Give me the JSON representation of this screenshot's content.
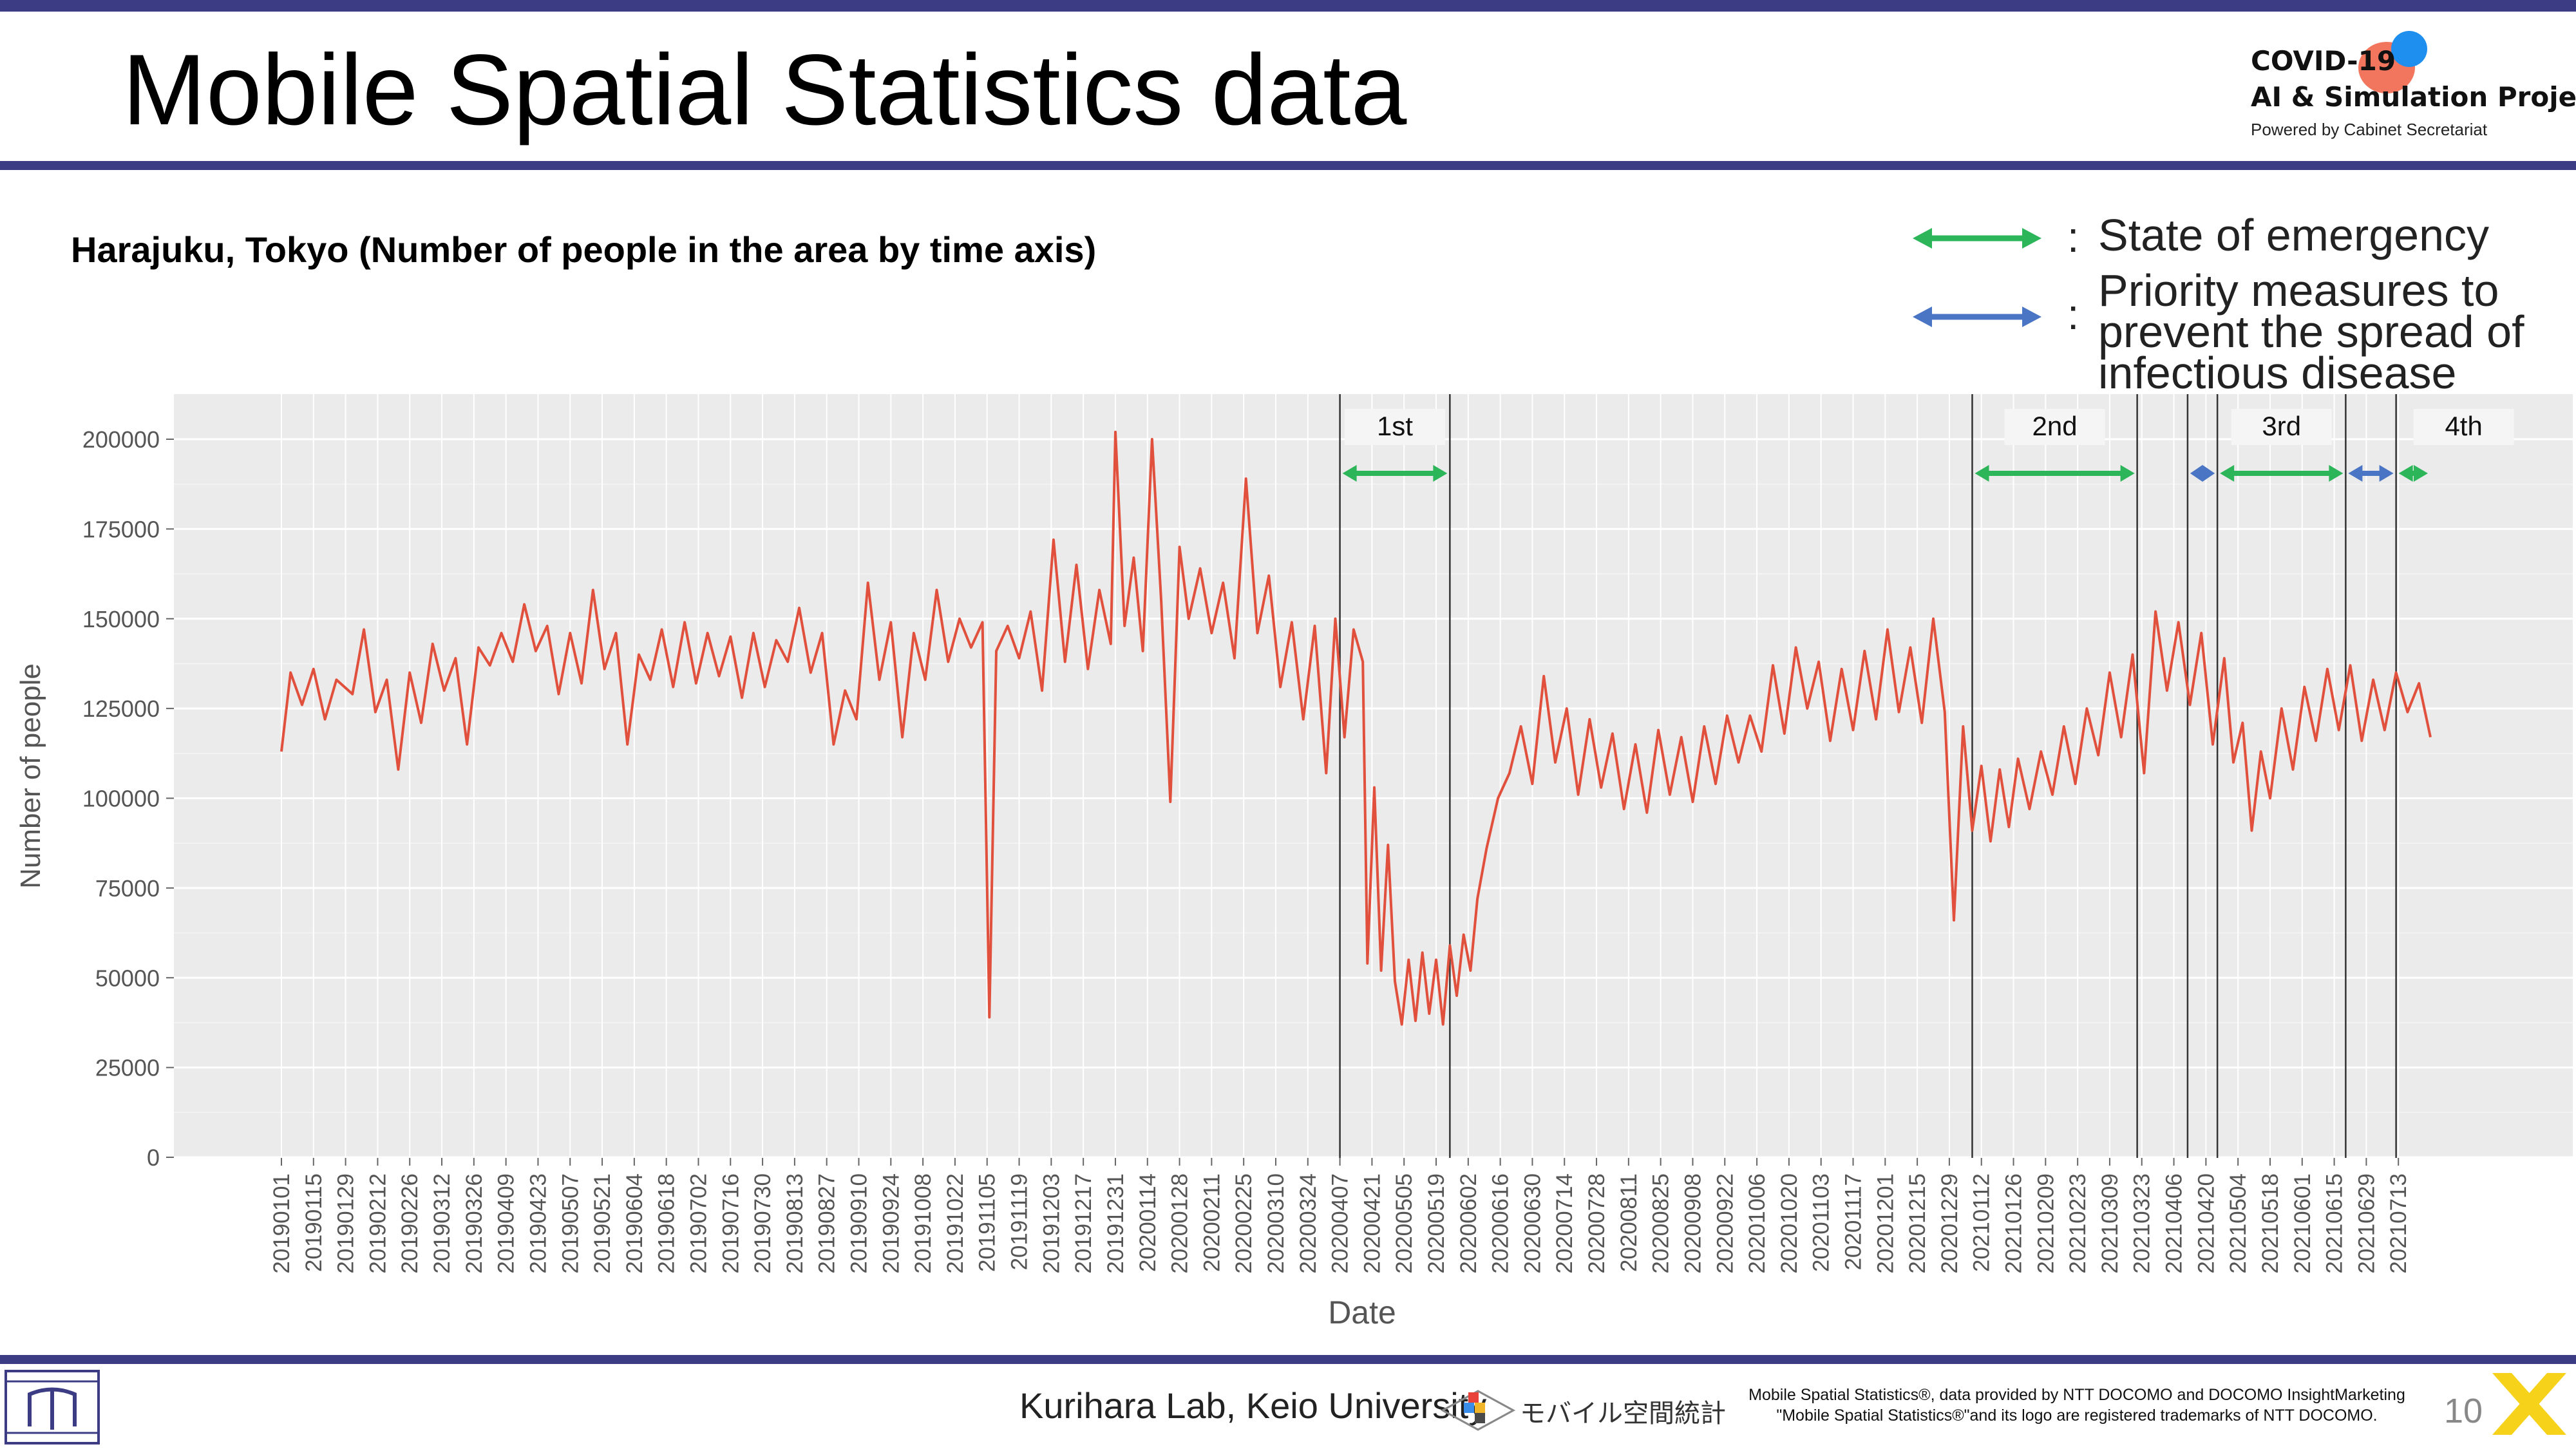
{
  "header": {
    "title": "Mobile Spatial Statistics data",
    "brand_line1": "COVID-19",
    "brand_line2": "AI & Simulation Project",
    "brand_line3": "Powered by Cabinet Secretariat"
  },
  "subtitle": "Harajuku, Tokyo (Number of people in the area by time axis)",
  "legend": {
    "emergency_colon": ":",
    "emergency_label": "State of emergency",
    "priority_colon": ":",
    "priority_label_1": "Priority measures to",
    "priority_label_2": "prevent the spread of",
    "priority_label_3": "infectious disease",
    "emergency_color": "#2db55a",
    "priority_color": "#4a74c4"
  },
  "chart_data": {
    "type": "line",
    "title": "",
    "xlabel": "Date",
    "ylabel": "Number of people",
    "ylim": [
      0,
      210000
    ],
    "y_ticks": [
      0,
      25000,
      50000,
      75000,
      100000,
      125000,
      150000,
      175000,
      200000
    ],
    "y_tick_labels": [
      "0",
      "25000",
      "50000",
      "75000",
      "100000",
      "125000",
      "150000",
      "175000",
      "200000"
    ],
    "x_range": [
      "2019-01-01",
      "2021-07-27"
    ],
    "x_ticks": [
      "20190101",
      "20190115",
      "20190129",
      "20190212",
      "20190226",
      "20190312",
      "20190326",
      "20190409",
      "20190423",
      "20190507",
      "20190521",
      "20190604",
      "20190618",
      "20190702",
      "20190716",
      "20190730",
      "20190813",
      "20190827",
      "20190910",
      "20190924",
      "20191008",
      "20191022",
      "20191105",
      "20191119",
      "20191203",
      "20191217",
      "20191231",
      "20200114",
      "20200128",
      "20200211",
      "20200225",
      "20200310",
      "20200324",
      "20200407",
      "20200421",
      "20200505",
      "20200519",
      "20200602",
      "20200616",
      "20200630",
      "20200714",
      "20200728",
      "20200811",
      "20200825",
      "20200908",
      "20200922",
      "20201006",
      "20201020",
      "20201103",
      "20201117",
      "20201201",
      "20201215",
      "20201229",
      "20210112",
      "20210126",
      "20210209",
      "20210223",
      "20210309",
      "20210323",
      "20210406",
      "20210420",
      "20210504",
      "20210518",
      "20210601",
      "20210615",
      "20210629",
      "20210713"
    ],
    "grid": true,
    "line_color": "#e0503c",
    "series": [
      {
        "name": "",
        "points": [
          [
            "2019-01-01",
            113000
          ],
          [
            "2019-01-05",
            135000
          ],
          [
            "2019-01-10",
            126000
          ],
          [
            "2019-01-15",
            136000
          ],
          [
            "2019-01-20",
            122000
          ],
          [
            "2019-01-25",
            133000
          ],
          [
            "2019-02-01",
            129000
          ],
          [
            "2019-02-06",
            147000
          ],
          [
            "2019-02-11",
            124000
          ],
          [
            "2019-02-16",
            133000
          ],
          [
            "2019-02-21",
            108000
          ],
          [
            "2019-02-26",
            135000
          ],
          [
            "2019-03-03",
            121000
          ],
          [
            "2019-03-08",
            143000
          ],
          [
            "2019-03-13",
            130000
          ],
          [
            "2019-03-18",
            139000
          ],
          [
            "2019-03-23",
            115000
          ],
          [
            "2019-03-28",
            142000
          ],
          [
            "2019-04-02",
            137000
          ],
          [
            "2019-04-07",
            146000
          ],
          [
            "2019-04-12",
            138000
          ],
          [
            "2019-04-17",
            154000
          ],
          [
            "2019-04-22",
            141000
          ],
          [
            "2019-04-27",
            148000
          ],
          [
            "2019-05-02",
            129000
          ],
          [
            "2019-05-07",
            146000
          ],
          [
            "2019-05-12",
            132000
          ],
          [
            "2019-05-17",
            158000
          ],
          [
            "2019-05-22",
            136000
          ],
          [
            "2019-05-27",
            146000
          ],
          [
            "2019-06-01",
            115000
          ],
          [
            "2019-06-06",
            140000
          ],
          [
            "2019-06-11",
            133000
          ],
          [
            "2019-06-16",
            147000
          ],
          [
            "2019-06-21",
            131000
          ],
          [
            "2019-06-26",
            149000
          ],
          [
            "2019-07-01",
            132000
          ],
          [
            "2019-07-06",
            146000
          ],
          [
            "2019-07-11",
            134000
          ],
          [
            "2019-07-16",
            145000
          ],
          [
            "2019-07-21",
            128000
          ],
          [
            "2019-07-26",
            146000
          ],
          [
            "2019-07-31",
            131000
          ],
          [
            "2019-08-05",
            144000
          ],
          [
            "2019-08-10",
            138000
          ],
          [
            "2019-08-15",
            153000
          ],
          [
            "2019-08-20",
            135000
          ],
          [
            "2019-08-25",
            146000
          ],
          [
            "2019-08-30",
            115000
          ],
          [
            "2019-09-04",
            130000
          ],
          [
            "2019-09-09",
            122000
          ],
          [
            "2019-09-14",
            160000
          ],
          [
            "2019-09-19",
            133000
          ],
          [
            "2019-09-24",
            149000
          ],
          [
            "2019-09-29",
            117000
          ],
          [
            "2019-10-04",
            146000
          ],
          [
            "2019-10-09",
            133000
          ],
          [
            "2019-10-14",
            158000
          ],
          [
            "2019-10-19",
            138000
          ],
          [
            "2019-10-24",
            150000
          ],
          [
            "2019-10-29",
            142000
          ],
          [
            "2019-11-03",
            149000
          ],
          [
            "2019-11-06",
            39000
          ],
          [
            "2019-11-09",
            141000
          ],
          [
            "2019-11-14",
            148000
          ],
          [
            "2019-11-19",
            139000
          ],
          [
            "2019-11-24",
            152000
          ],
          [
            "2019-11-29",
            130000
          ],
          [
            "2019-12-04",
            172000
          ],
          [
            "2019-12-09",
            138000
          ],
          [
            "2019-12-14",
            165000
          ],
          [
            "2019-12-19",
            136000
          ],
          [
            "2019-12-24",
            158000
          ],
          [
            "2019-12-29",
            143000
          ],
          [
            "2019-12-31",
            202000
          ],
          [
            "2020-01-04",
            148000
          ],
          [
            "2020-01-08",
            167000
          ],
          [
            "2020-01-12",
            141000
          ],
          [
            "2020-01-16",
            200000
          ],
          [
            "2020-01-20",
            155000
          ],
          [
            "2020-01-24",
            99000
          ],
          [
            "2020-01-28",
            170000
          ],
          [
            "2020-02-01",
            150000
          ],
          [
            "2020-02-06",
            164000
          ],
          [
            "2020-02-11",
            146000
          ],
          [
            "2020-02-16",
            160000
          ],
          [
            "2020-02-21",
            139000
          ],
          [
            "2020-02-26",
            189000
          ],
          [
            "2020-03-02",
            146000
          ],
          [
            "2020-03-07",
            162000
          ],
          [
            "2020-03-12",
            131000
          ],
          [
            "2020-03-17",
            149000
          ],
          [
            "2020-03-22",
            122000
          ],
          [
            "2020-03-27",
            148000
          ],
          [
            "2020-04-01",
            107000
          ],
          [
            "2020-04-05",
            150000
          ],
          [
            "2020-04-09",
            117000
          ],
          [
            "2020-04-13",
            147000
          ],
          [
            "2020-04-17",
            138000
          ],
          [
            "2020-04-19",
            54000
          ],
          [
            "2020-04-22",
            103000
          ],
          [
            "2020-04-25",
            52000
          ],
          [
            "2020-04-28",
            87000
          ],
          [
            "2020-05-01",
            49000
          ],
          [
            "2020-05-04",
            37000
          ],
          [
            "2020-05-07",
            55000
          ],
          [
            "2020-05-10",
            38000
          ],
          [
            "2020-05-13",
            57000
          ],
          [
            "2020-05-16",
            40000
          ],
          [
            "2020-05-19",
            55000
          ],
          [
            "2020-05-22",
            37000
          ],
          [
            "2020-05-25",
            59000
          ],
          [
            "2020-05-28",
            45000
          ],
          [
            "2020-05-31",
            62000
          ],
          [
            "2020-06-03",
            52000
          ],
          [
            "2020-06-06",
            72000
          ],
          [
            "2020-06-10",
            86000
          ],
          [
            "2020-06-15",
            100000
          ],
          [
            "2020-06-20",
            107000
          ],
          [
            "2020-06-25",
            120000
          ],
          [
            "2020-06-30",
            104000
          ],
          [
            "2020-07-05",
            134000
          ],
          [
            "2020-07-10",
            110000
          ],
          [
            "2020-07-15",
            125000
          ],
          [
            "2020-07-20",
            101000
          ],
          [
            "2020-07-25",
            122000
          ],
          [
            "2020-07-30",
            103000
          ],
          [
            "2020-08-04",
            118000
          ],
          [
            "2020-08-09",
            97000
          ],
          [
            "2020-08-14",
            115000
          ],
          [
            "2020-08-19",
            96000
          ],
          [
            "2020-08-24",
            119000
          ],
          [
            "2020-08-29",
            101000
          ],
          [
            "2020-09-03",
            117000
          ],
          [
            "2020-09-08",
            99000
          ],
          [
            "2020-09-13",
            120000
          ],
          [
            "2020-09-18",
            104000
          ],
          [
            "2020-09-23",
            123000
          ],
          [
            "2020-09-28",
            110000
          ],
          [
            "2020-10-03",
            123000
          ],
          [
            "2020-10-08",
            113000
          ],
          [
            "2020-10-13",
            137000
          ],
          [
            "2020-10-18",
            118000
          ],
          [
            "2020-10-23",
            142000
          ],
          [
            "2020-10-28",
            125000
          ],
          [
            "2020-11-02",
            138000
          ],
          [
            "2020-11-07",
            116000
          ],
          [
            "2020-11-12",
            136000
          ],
          [
            "2020-11-17",
            119000
          ],
          [
            "2020-11-22",
            141000
          ],
          [
            "2020-11-27",
            122000
          ],
          [
            "2020-12-02",
            147000
          ],
          [
            "2020-12-07",
            124000
          ],
          [
            "2020-12-12",
            142000
          ],
          [
            "2020-12-17",
            121000
          ],
          [
            "2020-12-22",
            150000
          ],
          [
            "2020-12-27",
            124000
          ],
          [
            "2020-12-31",
            66000
          ],
          [
            "2021-01-04",
            120000
          ],
          [
            "2021-01-08",
            91000
          ],
          [
            "2021-01-12",
            109000
          ],
          [
            "2021-01-16",
            88000
          ],
          [
            "2021-01-20",
            108000
          ],
          [
            "2021-01-24",
            92000
          ],
          [
            "2021-01-28",
            111000
          ],
          [
            "2021-02-02",
            97000
          ],
          [
            "2021-02-07",
            113000
          ],
          [
            "2021-02-12",
            101000
          ],
          [
            "2021-02-17",
            120000
          ],
          [
            "2021-02-22",
            104000
          ],
          [
            "2021-02-27",
            125000
          ],
          [
            "2021-03-04",
            112000
          ],
          [
            "2021-03-09",
            135000
          ],
          [
            "2021-03-14",
            117000
          ],
          [
            "2021-03-19",
            140000
          ],
          [
            "2021-03-24",
            107000
          ],
          [
            "2021-03-29",
            152000
          ],
          [
            "2021-04-03",
            130000
          ],
          [
            "2021-04-08",
            149000
          ],
          [
            "2021-04-13",
            126000
          ],
          [
            "2021-04-18",
            146000
          ],
          [
            "2021-04-23",
            115000
          ],
          [
            "2021-04-28",
            139000
          ],
          [
            "2021-05-02",
            110000
          ],
          [
            "2021-05-06",
            121000
          ],
          [
            "2021-05-10",
            91000
          ],
          [
            "2021-05-14",
            113000
          ],
          [
            "2021-05-18",
            100000
          ],
          [
            "2021-05-23",
            125000
          ],
          [
            "2021-05-28",
            108000
          ],
          [
            "2021-06-02",
            131000
          ],
          [
            "2021-06-07",
            116000
          ],
          [
            "2021-06-12",
            136000
          ],
          [
            "2021-06-17",
            119000
          ],
          [
            "2021-06-22",
            137000
          ],
          [
            "2021-06-27",
            116000
          ],
          [
            "2021-07-02",
            133000
          ],
          [
            "2021-07-07",
            119000
          ],
          [
            "2021-07-12",
            135000
          ],
          [
            "2021-07-17",
            124000
          ],
          [
            "2021-07-22",
            132000
          ],
          [
            "2021-07-27",
            117000
          ]
        ]
      }
    ],
    "period_labels": [
      "1st",
      "2nd",
      "3rd",
      "4th"
    ],
    "period_lines": [
      "2020-04-07",
      "2020-05-25",
      "2021-01-08",
      "2021-03-21",
      "2021-04-12",
      "2021-04-25",
      "2021-06-20",
      "2021-07-12"
    ],
    "periods": [
      {
        "kind": "emergency",
        "start": "2020-04-07",
        "end": "2020-05-25"
      },
      {
        "kind": "emergency",
        "start": "2021-01-08",
        "end": "2021-03-21"
      },
      {
        "kind": "priority",
        "start": "2021-04-12",
        "end": "2021-04-25"
      },
      {
        "kind": "emergency",
        "start": "2021-04-25",
        "end": "2021-06-20"
      },
      {
        "kind": "priority",
        "start": "2021-06-20",
        "end": "2021-07-12"
      },
      {
        "kind": "emergency",
        "start": "2021-07-12",
        "end": "2021-07-27"
      }
    ]
  },
  "footer": {
    "lab": "Kurihara Lab, Keio University",
    "mobile_logo_text": "モバイル空間統計",
    "credit_line1": "Mobile Spatial Statistics®, data provided by NTT DOCOMO and DOCOMO InsightMarketing",
    "credit_line2": "\"Mobile Spatial Statistics®\"and its logo are registered trademarks of NTT DOCOMO.",
    "page_number": "10"
  }
}
